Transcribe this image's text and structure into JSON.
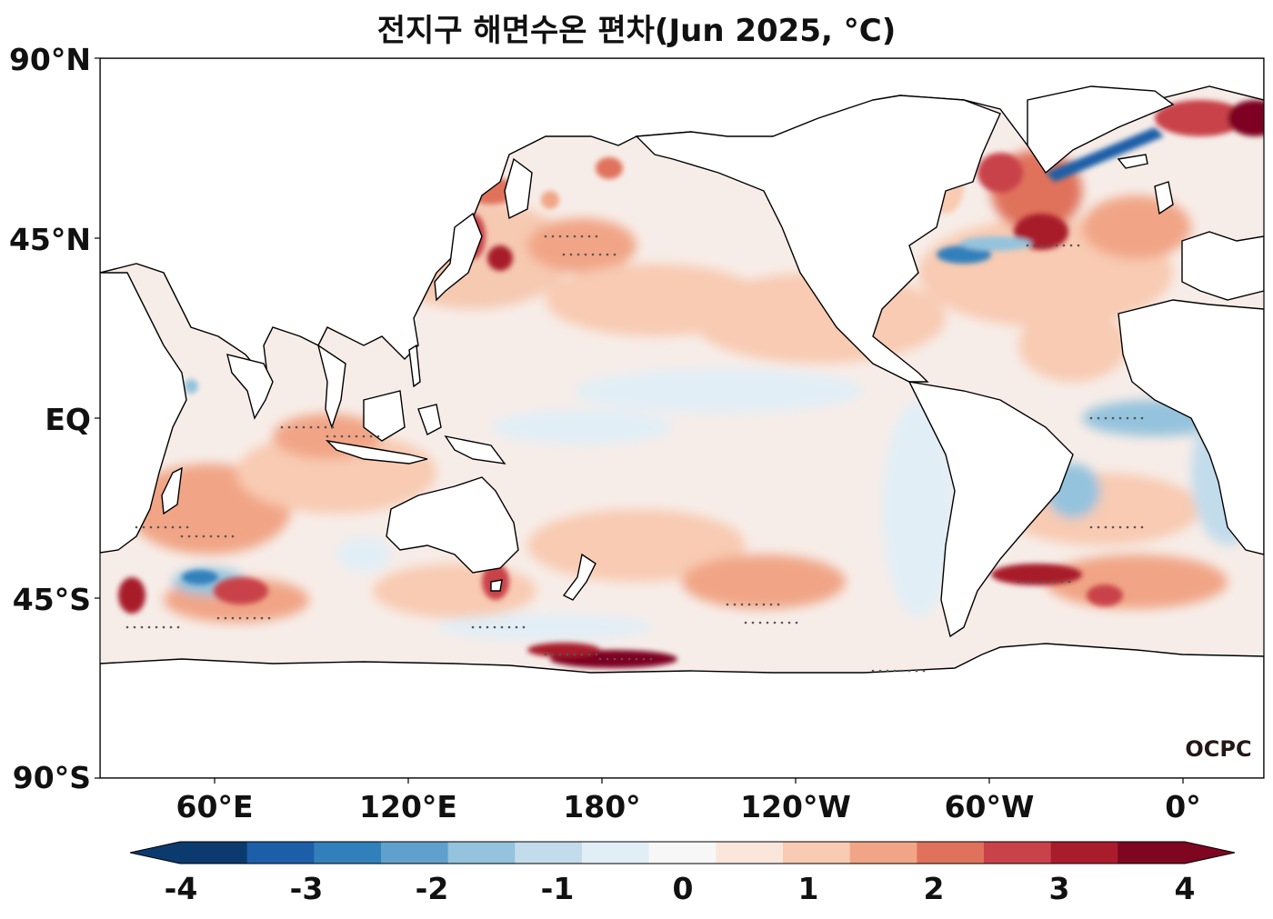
{
  "title": "전지구 해면수온 편차(Jun 2025, °C)",
  "lat_labels": [
    "90°N",
    "45°N",
    "EQ",
    "45°S",
    "90°S"
  ],
  "lon_labels": [
    "60°E",
    "120°E",
    "180°",
    "120°W",
    "60°W",
    "0°"
  ],
  "colorbar": {
    "tick_labels": [
      "-4",
      "-3",
      "-2",
      "-1",
      "0",
      "1",
      "2",
      "3",
      "4"
    ],
    "levels": [
      -4,
      -3.5,
      -3,
      -2.5,
      -2,
      -1.5,
      -1,
      -0.5,
      0,
      0.5,
      1,
      1.5,
      2,
      2.5,
      3,
      3.5,
      4
    ],
    "colors": [
      "#0b3a6e",
      "#1c5ea8",
      "#3180bb",
      "#5fa1cc",
      "#94c3dd",
      "#c2dcec",
      "#e2eef6",
      "#f7f7f7",
      "#fbe6dc",
      "#f8cbb2",
      "#f1a586",
      "#e0725c",
      "#c9424a",
      "#a81c2c",
      "#7e0620"
    ],
    "extend": "both"
  },
  "watermark": "OCPC",
  "colors": {
    "land": "#ffffff",
    "coast": "#000000",
    "near_zero": "#f7ede8"
  }
}
